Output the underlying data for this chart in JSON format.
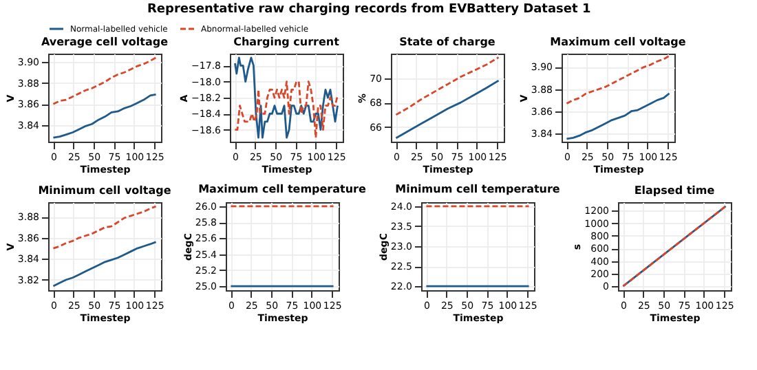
{
  "chart_data": [
    {
      "type": "line",
      "title": "Average cell voltage",
      "xlabel": "Timestep",
      "ylabel": "V",
      "annotations": [
        "Representative raw charging records from EVBattery Dataset 1"
      ],
      "legend": "top",
      "grid": true,
      "xlim": [
        -6.35,
        133.35
      ],
      "xticks": [
        0,
        25,
        50,
        75,
        100,
        125
      ],
      "ylim": [
        3.8242,
        3.9078
      ],
      "yticks": [
        3.84,
        3.86,
        3.88,
        {
          "value": 3.9,
          "label": "3.90"
        }
      ],
      "x": [
        0,
        8,
        16,
        24,
        32,
        40,
        48,
        56,
        64,
        72,
        80,
        88,
        96,
        104,
        112,
        120,
        127
      ],
      "series": [
        {
          "name": "Normal-labelled vehicle",
          "color": "#1f5a8a",
          "line_style": "solid",
          "values": [
            3.828,
            3.829,
            3.831,
            3.833,
            3.836,
            3.839,
            3.841,
            3.845,
            3.848,
            3.852,
            3.853,
            3.856,
            3.858,
            3.861,
            3.864,
            3.868,
            3.869
          ]
        },
        {
          "name": "Abnormal-labelled vehicle",
          "color": "#d9472b",
          "line_style": "dashed",
          "values": [
            3.86,
            3.863,
            3.864,
            3.867,
            3.87,
            3.873,
            3.875,
            3.878,
            3.881,
            3.885,
            3.888,
            3.89,
            3.893,
            3.896,
            3.898,
            3.901,
            3.904
          ]
        }
      ]
    },
    {
      "type": "line",
      "title": "Charging current",
      "xlabel": "Timestep",
      "ylabel": "A",
      "grid": true,
      "xlim": [
        -6.35,
        133.35
      ],
      "xticks": [
        0,
        25,
        50,
        75,
        100,
        125
      ],
      "ylim": [
        -18.75,
        -17.65
      ],
      "yticks": [
        -18.6,
        -18.4,
        -18.2,
        {
          "value": -18.0,
          "label": "−18.0"
        },
        -17.8
      ],
      "series": [
        {
          "color": "#1f5a8a",
          "line_style": "solid",
          "x": [
            0,
            2,
            5,
            7,
            10,
            13,
            16,
            20,
            23,
            26,
            29,
            32,
            34,
            37,
            40,
            43,
            46,
            49,
            52,
            55,
            58,
            61,
            64,
            67,
            70,
            73,
            76,
            79,
            82,
            85,
            88,
            91,
            94,
            97,
            100,
            103,
            106,
            109,
            112,
            115,
            118,
            121,
            124,
            127
          ],
          "values": [
            -17.77,
            -17.9,
            -17.7,
            -17.8,
            -17.8,
            -18.0,
            -17.85,
            -17.7,
            -17.8,
            -18.4,
            -18.7,
            -18.3,
            -18.7,
            -18.5,
            -18.5,
            -18.4,
            -18.4,
            -18.3,
            -18.4,
            -18.4,
            -18.4,
            -18.3,
            -18.7,
            -18.6,
            -18.3,
            -18.3,
            -18.4,
            -18.4,
            -18.3,
            -18.4,
            -18.3,
            -18.3,
            -18.5,
            -18.5,
            -18.4,
            -18.4,
            -18.6,
            -18.3,
            -18.1,
            -18.2,
            -18.1,
            -18.3,
            -18.5,
            -18.3
          ]
        },
        {
          "color": "#d9472b",
          "line_style": "dashed",
          "x": [
            0,
            3,
            6,
            9,
            12,
            15,
            18,
            21,
            24,
            27,
            29,
            31,
            34,
            37,
            40,
            43,
            46,
            49,
            52,
            55,
            58,
            61,
            64,
            67,
            70,
            73,
            76,
            79,
            82,
            85,
            88,
            91,
            94,
            97,
            100,
            103,
            106,
            109,
            112,
            115,
            118,
            121,
            124,
            127
          ],
          "values": [
            -18.6,
            -18.6,
            -18.3,
            -18.4,
            -18.5,
            -18.5,
            -18.5,
            -18.4,
            -18.5,
            -18.4,
            -18.1,
            -18.4,
            -18.4,
            -18.4,
            -18.2,
            -18.1,
            -18.1,
            -18.2,
            -18.1,
            -18.2,
            -18.1,
            -18.2,
            -18.0,
            -18.4,
            -18.1,
            -18.1,
            -18.0,
            -18.0,
            -18.4,
            -18.3,
            -18.3,
            -18.0,
            -18.1,
            -18.3,
            -18.7,
            -18.3,
            -18.3,
            -18.6,
            -18.3,
            -18.3,
            -18.2,
            -18.3,
            -18.3,
            -18.17
          ]
        }
      ]
    },
    {
      "type": "line",
      "title": "State of charge",
      "xlabel": "Timestep",
      "ylabel": "%",
      "grid": true,
      "xlim": [
        -6.35,
        133.35
      ],
      "xticks": [
        0,
        25,
        50,
        75,
        100,
        125
      ],
      "ylim": [
        64.8,
        72.0
      ],
      "yticks": [
        66,
        68,
        70
      ],
      "x": [
        0,
        16,
        32,
        48,
        64,
        80,
        96,
        112,
        127
      ],
      "series": [
        {
          "color": "#1f5a8a",
          "line_style": "solid",
          "values": [
            65.1,
            65.7,
            66.3,
            66.9,
            67.5,
            68.0,
            68.6,
            69.2,
            69.8
          ]
        },
        {
          "color": "#d9472b",
          "line_style": "dashed",
          "values": [
            67.0,
            67.6,
            68.3,
            68.9,
            69.5,
            70.1,
            70.6,
            71.1,
            71.7
          ]
        }
      ]
    },
    {
      "type": "line",
      "title": "Maximum cell voltage",
      "xlabel": "Timestep",
      "ylabel": "V",
      "grid": true,
      "xlim": [
        -6.35,
        133.35
      ],
      "xticks": [
        0,
        25,
        50,
        75,
        100,
        125
      ],
      "ylim": [
        3.8325,
        3.912
      ],
      "yticks": [
        3.84,
        3.86,
        3.88,
        {
          "value": 3.9,
          "label": "3.90"
        }
      ],
      "x": [
        0,
        8,
        16,
        24,
        32,
        40,
        48,
        56,
        64,
        72,
        80,
        88,
        96,
        104,
        112,
        120,
        127
      ],
      "series": [
        {
          "color": "#1f5a8a",
          "line_style": "solid",
          "values": [
            3.835,
            3.836,
            3.838,
            3.841,
            3.843,
            3.846,
            3.849,
            3.852,
            3.854,
            3.856,
            3.86,
            3.861,
            3.864,
            3.867,
            3.87,
            3.872,
            3.876
          ]
        },
        {
          "color": "#d9472b",
          "line_style": "dashed",
          "values": [
            3.867,
            3.87,
            3.872,
            3.876,
            3.878,
            3.88,
            3.882,
            3.885,
            3.888,
            3.891,
            3.894,
            3.897,
            3.9,
            3.902,
            3.905,
            3.907,
            3.91
          ]
        }
      ]
    },
    {
      "type": "line",
      "title": "Minimum cell voltage",
      "xlabel": "Timestep",
      "ylabel": "V",
      "grid": true,
      "xlim": [
        -6.35,
        133.35
      ],
      "xticks": [
        0,
        25,
        50,
        75,
        100,
        125
      ],
      "ylim": [
        3.81,
        3.894
      ],
      "yticks": [
        3.82,
        3.84,
        3.86,
        3.88
      ],
      "x": [
        0,
        8,
        16,
        24,
        32,
        40,
        48,
        56,
        64,
        72,
        80,
        88,
        96,
        104,
        112,
        120,
        127
      ],
      "series": [
        {
          "color": "#1f5a8a",
          "line_style": "solid",
          "values": [
            3.814,
            3.817,
            3.82,
            3.822,
            3.825,
            3.828,
            3.831,
            3.834,
            3.837,
            3.839,
            3.841,
            3.844,
            3.847,
            3.85,
            3.852,
            3.854,
            3.856
          ]
        },
        {
          "color": "#d9472b",
          "line_style": "dashed",
          "values": [
            3.85,
            3.852,
            3.855,
            3.857,
            3.86,
            3.862,
            3.864,
            3.867,
            3.87,
            3.871,
            3.875,
            3.879,
            3.881,
            3.883,
            3.885,
            3.888,
            3.89
          ]
        }
      ]
    },
    {
      "type": "line",
      "title": "Maximum cell temperature",
      "xlabel": "Timestep",
      "ylabel": "degC",
      "grid": true,
      "xlim": [
        -6.35,
        133.35
      ],
      "xticks": [
        0,
        25,
        50,
        75,
        100,
        125
      ],
      "ylim": [
        24.95,
        26.05
      ],
      "yticks": [
        {
          "value": 25,
          "label": "25.0"
        },
        25.2,
        25.4,
        25.6,
        25.8,
        {
          "value": 26,
          "label": "26.0"
        }
      ],
      "x": [
        0,
        127
      ],
      "series": [
        {
          "color": "#1f5a8a",
          "line_style": "solid",
          "values": [
            25,
            25
          ]
        },
        {
          "color": "#d9472b",
          "line_style": "dashed",
          "values": [
            26,
            26
          ]
        }
      ]
    },
    {
      "type": "line",
      "title": "Minimum cell temperature",
      "xlabel": "Timestep",
      "ylabel": "degC",
      "grid": true,
      "xlim": [
        -6.35,
        133.35
      ],
      "xticks": [
        0,
        25,
        50,
        75,
        100,
        125
      ],
      "ylim": [
        21.9,
        24.1
      ],
      "yticks": [
        {
          "value": 22,
          "label": "22.0"
        },
        22.5,
        {
          "value": 23,
          "label": "23.0"
        },
        23.5,
        {
          "value": 24,
          "label": "24.0"
        }
      ],
      "x": [
        0,
        127
      ],
      "series": [
        {
          "color": "#1f5a8a",
          "line_style": "solid",
          "values": [
            22,
            22
          ]
        },
        {
          "color": "#d9472b",
          "line_style": "dashed",
          "values": [
            24,
            24
          ]
        }
      ]
    },
    {
      "type": "line",
      "title": "Elapsed time",
      "xlabel": "Timestep",
      "ylabel": "s",
      "grid": true,
      "xlim": [
        -6.35,
        133.35
      ],
      "xticks": [
        0,
        25,
        50,
        75,
        100,
        125
      ],
      "ylim": [
        -63.5,
        1333.5
      ],
      "yticks": [
        0,
        200,
        400,
        600,
        800,
        1000,
        1200
      ],
      "x": [
        0,
        127
      ],
      "series": [
        {
          "color": "#1f5a8a",
          "line_style": "solid",
          "values": [
            0,
            1270
          ]
        },
        {
          "color": "#d9472b",
          "line_style": "dashed",
          "values": [
            0,
            1270
          ]
        }
      ]
    }
  ]
}
